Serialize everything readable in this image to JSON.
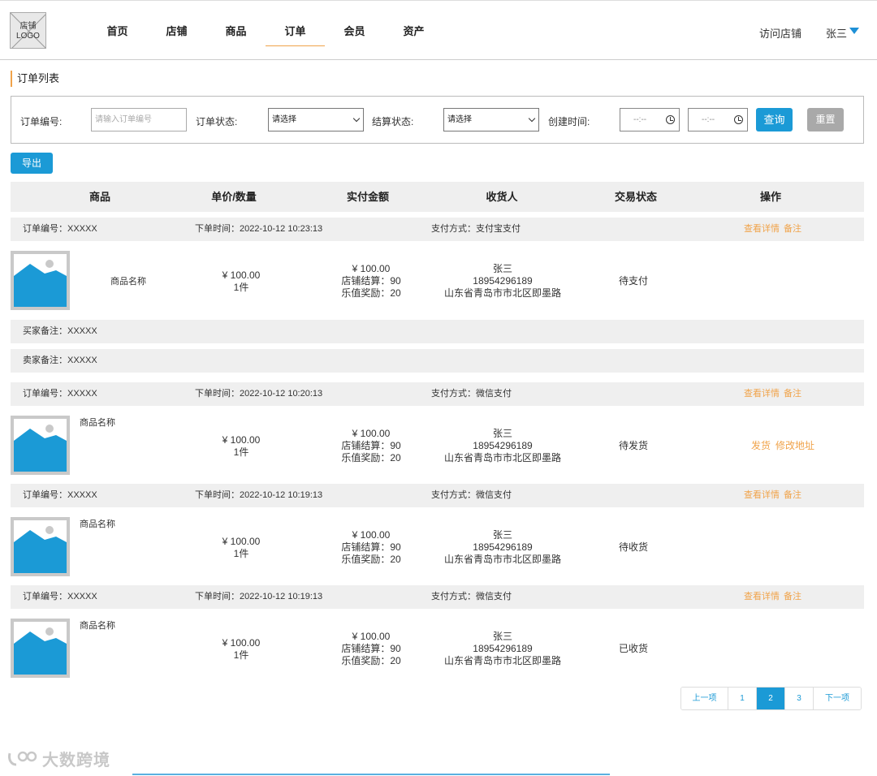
{
  "logo": {
    "line1": "店铺",
    "line2": "LOGO"
  },
  "nav": {
    "items": [
      "首页",
      "店铺",
      "商品",
      "订单",
      "会员",
      "资产"
    ],
    "active": "订单",
    "visit_store": "访问店铺",
    "user": "张三"
  },
  "section_title": "订单列表",
  "filter": {
    "order_no_label": "订单编号:",
    "order_no_placeholder": "请输入订单编号",
    "order_status_label": "订单状态:",
    "order_status_value": "请选择",
    "settle_status_label": "结算状态:",
    "settle_status_value": "请选择",
    "created_label": "创建时间:",
    "date_start": "--:--",
    "date_end": "--:--",
    "query": "查询",
    "reset": "重置"
  },
  "export": "导出",
  "table_headers": [
    "商品",
    "单价/数量",
    "实付金额",
    "收货人",
    "交易状态",
    "操作"
  ],
  "orders": [
    {
      "order_no": "订单编号：XXXXX",
      "order_time": "下单时间：2022-10-12 10:23:13",
      "payment": "支付方式：支付宝支付",
      "actions": [
        "查看详情",
        "备注"
      ],
      "product_name": "商品名称",
      "price": "¥ 100.00",
      "qty": "1件",
      "paid": "¥ 100.00",
      "store_settle": "店铺结算：90",
      "reward": "乐值奖励：20",
      "receiver_name": "张三",
      "receiver_phone": "18954296189",
      "receiver_addr": "山东省青岛市市北区即墨路",
      "status": "待支付",
      "row_actions": [],
      "buyer_remark": "买家备注：XXXXX",
      "seller_remark": "卖家备注：XXXXX"
    },
    {
      "order_no": "订单编号：XXXXX",
      "order_time": "下单时间：2022-10-12 10:20:13",
      "payment": "支付方式：微信支付",
      "actions": [
        "查看详情",
        "备注"
      ],
      "product_name": "商品名称",
      "price": "¥ 100.00",
      "qty": "1件",
      "paid": "¥ 100.00",
      "store_settle": "店铺结算：90",
      "reward": "乐值奖励：20",
      "receiver_name": "张三",
      "receiver_phone": "18954296189",
      "receiver_addr": "山东省青岛市市北区即墨路",
      "status": "待发货",
      "row_actions": [
        "发货",
        "修改地址"
      ]
    },
    {
      "order_no": "订单编号：XXXXX",
      "order_time": "下单时间：2022-10-12 10:19:13",
      "payment": "支付方式：微信支付",
      "actions": [
        "查看详情",
        "备注"
      ],
      "product_name": "商品名称",
      "price": "¥ 100.00",
      "qty": "1件",
      "paid": "¥ 100.00",
      "store_settle": "店铺结算：90",
      "reward": "乐值奖励：20",
      "receiver_name": "张三",
      "receiver_phone": "18954296189",
      "receiver_addr": "山东省青岛市市北区即墨路",
      "status": "待收货",
      "row_actions": []
    },
    {
      "order_no": "订单编号：XXXXX",
      "order_time": "下单时间：2022-10-12 10:19:13",
      "payment": "支付方式：微信支付",
      "actions": [
        "查看详情",
        "备注"
      ],
      "product_name": "商品名称",
      "price": "¥ 100.00",
      "qty": "1件",
      "paid": "¥ 100.00",
      "store_settle": "店铺结算：90",
      "reward": "乐值奖励：20",
      "receiver_name": "张三",
      "receiver_phone": "18954296189",
      "receiver_addr": "山东省青岛市市北区即墨路",
      "status": "已收货",
      "row_actions": []
    }
  ],
  "pagination": {
    "prev": "上一项",
    "pages": [
      "1",
      "2",
      "3"
    ],
    "current": "2",
    "next": "下一项"
  },
  "watermark": "大数跨境",
  "colors": {
    "accent": "#1b9ad6",
    "link": "#f0a34a",
    "row_bg": "#efefef"
  }
}
